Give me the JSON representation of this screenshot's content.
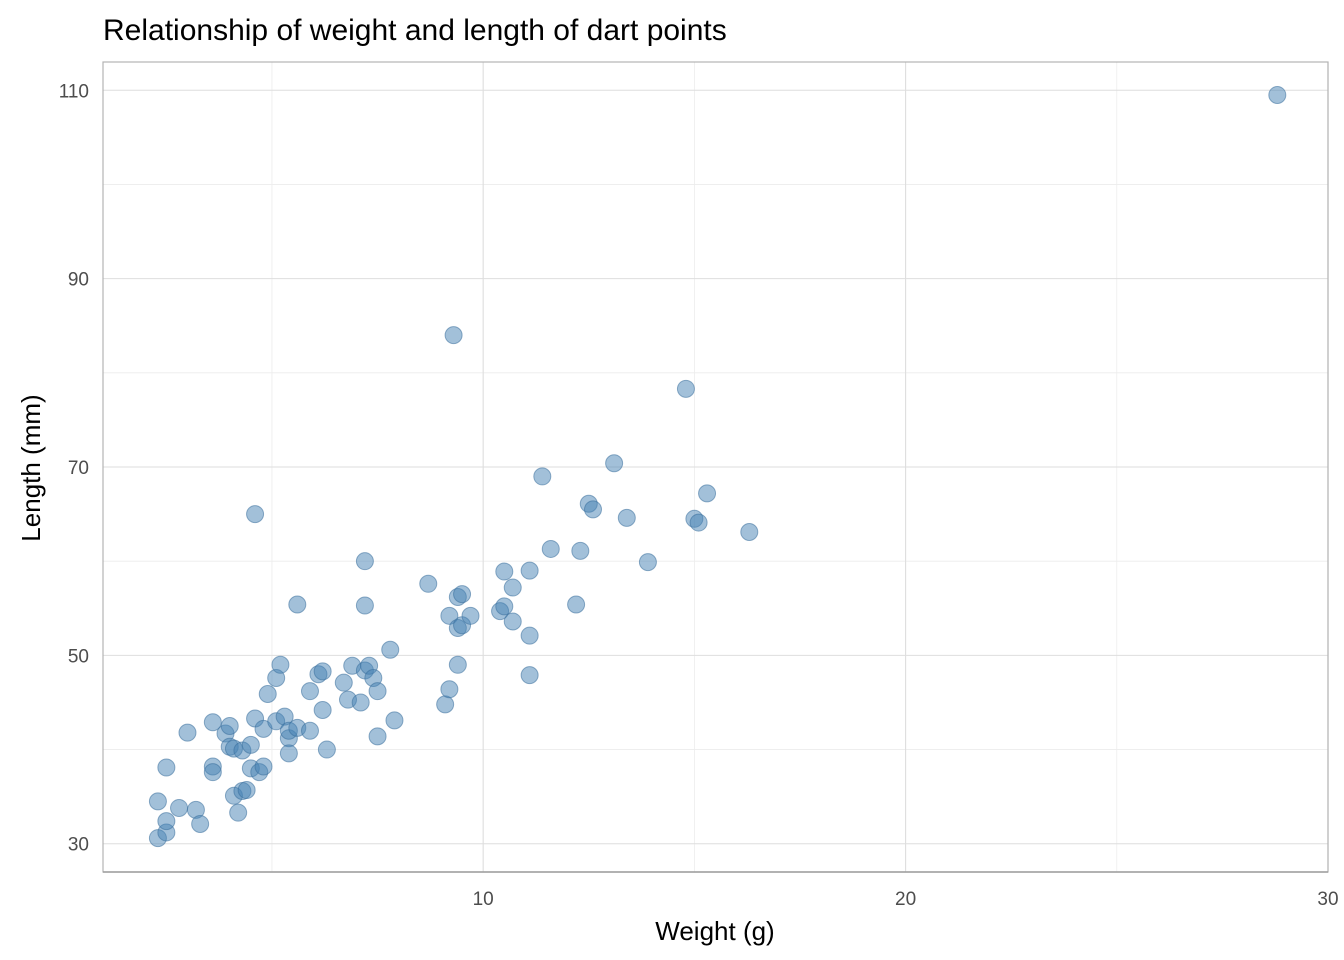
{
  "chart_data": {
    "type": "scatter",
    "title": "Relationship of weight and length of dart points",
    "xlabel": "Weight (g)",
    "ylabel": "Length (mm)",
    "xlim": [
      1,
      30
    ],
    "ylim": [
      27,
      113
    ],
    "xticks": [
      10,
      20,
      30
    ],
    "yticks": [
      30,
      50,
      70,
      90,
      110
    ],
    "grid": true,
    "point_color": "#4682b4",
    "point_opacity": 0.5,
    "points": [
      {
        "x": 2.3,
        "y": 30.6
      },
      {
        "x": 2.5,
        "y": 31.2
      },
      {
        "x": 2.5,
        "y": 32.4
      },
      {
        "x": 2.3,
        "y": 34.5
      },
      {
        "x": 2.5,
        "y": 38.1
      },
      {
        "x": 2.8,
        "y": 33.8
      },
      {
        "x": 3.2,
        "y": 33.6
      },
      {
        "x": 3.3,
        "y": 32.1
      },
      {
        "x": 3.0,
        "y": 41.8
      },
      {
        "x": 3.6,
        "y": 38.2
      },
      {
        "x": 3.6,
        "y": 37.6
      },
      {
        "x": 3.6,
        "y": 42.9
      },
      {
        "x": 3.9,
        "y": 41.7
      },
      {
        "x": 4.0,
        "y": 42.5
      },
      {
        "x": 4.0,
        "y": 40.3
      },
      {
        "x": 4.1,
        "y": 40.1
      },
      {
        "x": 4.1,
        "y": 35.1
      },
      {
        "x": 4.2,
        "y": 33.3
      },
      {
        "x": 4.3,
        "y": 39.9
      },
      {
        "x": 4.3,
        "y": 35.6
      },
      {
        "x": 4.4,
        "y": 35.7
      },
      {
        "x": 4.5,
        "y": 38.0
      },
      {
        "x": 4.5,
        "y": 40.5
      },
      {
        "x": 4.6,
        "y": 43.3
      },
      {
        "x": 4.6,
        "y": 65.0
      },
      {
        "x": 4.7,
        "y": 37.6
      },
      {
        "x": 4.8,
        "y": 38.2
      },
      {
        "x": 4.8,
        "y": 42.2
      },
      {
        "x": 4.9,
        "y": 45.9
      },
      {
        "x": 5.1,
        "y": 43.0
      },
      {
        "x": 5.1,
        "y": 47.6
      },
      {
        "x": 5.2,
        "y": 49.0
      },
      {
        "x": 5.3,
        "y": 43.5
      },
      {
        "x": 5.4,
        "y": 41.2
      },
      {
        "x": 5.4,
        "y": 39.6
      },
      {
        "x": 5.4,
        "y": 42.0
      },
      {
        "x": 5.6,
        "y": 42.3
      },
      {
        "x": 5.6,
        "y": 55.4
      },
      {
        "x": 5.9,
        "y": 46.2
      },
      {
        "x": 5.9,
        "y": 42.0
      },
      {
        "x": 6.1,
        "y": 48.0
      },
      {
        "x": 6.2,
        "y": 48.3
      },
      {
        "x": 6.2,
        "y": 44.2
      },
      {
        "x": 6.3,
        "y": 40.0
      },
      {
        "x": 6.7,
        "y": 47.1
      },
      {
        "x": 6.8,
        "y": 45.3
      },
      {
        "x": 6.9,
        "y": 48.9
      },
      {
        "x": 7.1,
        "y": 45.0
      },
      {
        "x": 7.2,
        "y": 48.4
      },
      {
        "x": 7.2,
        "y": 60.0
      },
      {
        "x": 7.2,
        "y": 55.3
      },
      {
        "x": 7.3,
        "y": 48.9
      },
      {
        "x": 7.4,
        "y": 47.6
      },
      {
        "x": 7.5,
        "y": 46.2
      },
      {
        "x": 7.5,
        "y": 41.4
      },
      {
        "x": 7.8,
        "y": 50.6
      },
      {
        "x": 7.9,
        "y": 43.1
      },
      {
        "x": 8.7,
        "y": 57.6
      },
      {
        "x": 9.1,
        "y": 44.8
      },
      {
        "x": 9.2,
        "y": 46.4
      },
      {
        "x": 9.2,
        "y": 54.2
      },
      {
        "x": 9.3,
        "y": 84.0
      },
      {
        "x": 9.4,
        "y": 52.9
      },
      {
        "x": 9.4,
        "y": 49.0
      },
      {
        "x": 9.4,
        "y": 56.2
      },
      {
        "x": 9.5,
        "y": 53.2
      },
      {
        "x": 9.5,
        "y": 56.5
      },
      {
        "x": 9.7,
        "y": 54.2
      },
      {
        "x": 10.4,
        "y": 54.7
      },
      {
        "x": 10.5,
        "y": 55.2
      },
      {
        "x": 10.5,
        "y": 58.9
      },
      {
        "x": 10.7,
        "y": 57.2
      },
      {
        "x": 10.7,
        "y": 53.6
      },
      {
        "x": 11.1,
        "y": 59.0
      },
      {
        "x": 11.1,
        "y": 52.1
      },
      {
        "x": 11.1,
        "y": 47.9
      },
      {
        "x": 11.4,
        "y": 69.0
      },
      {
        "x": 11.6,
        "y": 61.3
      },
      {
        "x": 12.2,
        "y": 55.4
      },
      {
        "x": 12.3,
        "y": 61.1
      },
      {
        "x": 12.5,
        "y": 66.1
      },
      {
        "x": 12.6,
        "y": 65.5
      },
      {
        "x": 13.1,
        "y": 70.4
      },
      {
        "x": 13.4,
        "y": 64.6
      },
      {
        "x": 13.9,
        "y": 59.9
      },
      {
        "x": 14.8,
        "y": 78.3
      },
      {
        "x": 15.0,
        "y": 64.5
      },
      {
        "x": 15.1,
        "y": 64.1
      },
      {
        "x": 15.3,
        "y": 67.2
      },
      {
        "x": 16.3,
        "y": 63.1
      },
      {
        "x": 28.8,
        "y": 109.5
      }
    ]
  }
}
